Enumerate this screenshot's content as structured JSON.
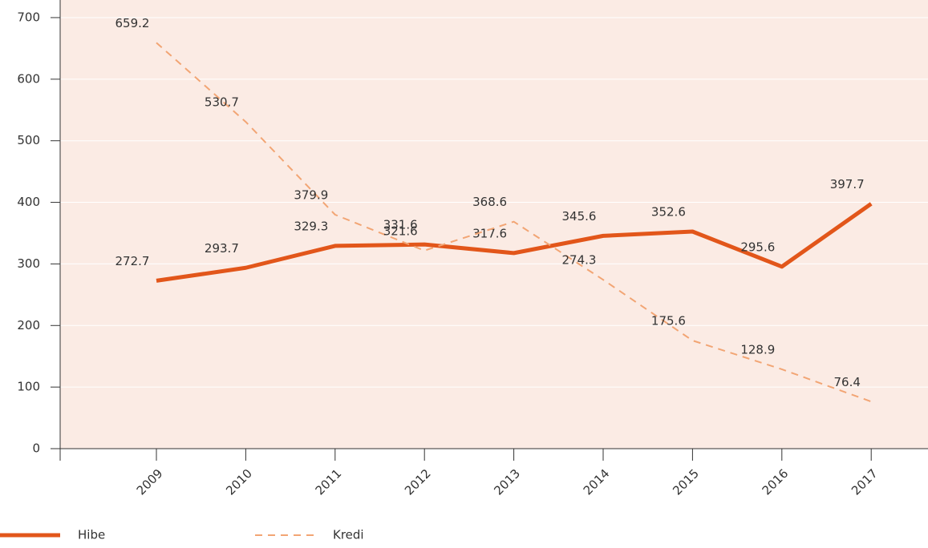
{
  "chart_data": {
    "type": "line",
    "categories": [
      "2009",
      "2010",
      "2011",
      "2012",
      "2013",
      "2014",
      "2015",
      "2016",
      "2017"
    ],
    "series": [
      {
        "name": "Hibe",
        "color": "#e2561a",
        "values": [
          272.7,
          293.7,
          329.3,
          331.6,
          317.6,
          345.6,
          352.6,
          295.6,
          397.7
        ]
      },
      {
        "name": "Kredi",
        "color": "#f2a574",
        "values": [
          659.2,
          530.7,
          379.9,
          321.6,
          368.6,
          274.3,
          175.6,
          128.9,
          76.4
        ]
      }
    ],
    "ylim": [
      0,
      720
    ],
    "yticks": [
      0,
      100,
      200,
      300,
      400,
      500,
      600,
      700
    ],
    "grid": true
  }
}
